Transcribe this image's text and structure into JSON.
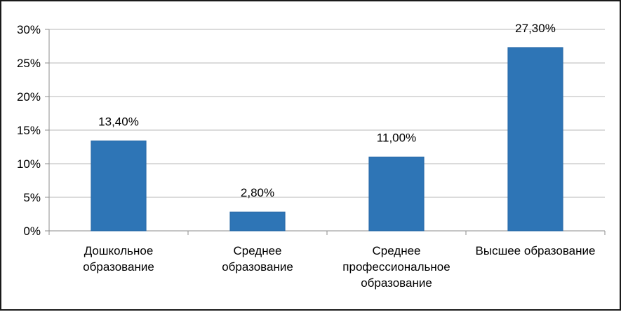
{
  "chart_data": {
    "type": "bar",
    "title": "",
    "xlabel": "",
    "ylabel": "",
    "categories": [
      [
        "Дошкольное",
        "образование"
      ],
      [
        "Среднее",
        "образование"
      ],
      [
        "Среднее",
        "профессиональное",
        "образование"
      ],
      [
        "Высшее образование"
      ]
    ],
    "values": [
      13.4,
      2.8,
      11.0,
      27.3
    ],
    "data_labels": [
      "13,40%",
      "2,80%",
      "11,00%",
      "27,30%"
    ],
    "ylim": [
      0,
      30
    ],
    "y_ticks": [
      0,
      5,
      10,
      15,
      20,
      25,
      30
    ],
    "y_tick_labels": [
      "0%",
      "5%",
      "10%",
      "15%",
      "20%",
      "25%",
      "30%"
    ],
    "gridlines": true,
    "legend": false,
    "colors": {
      "bar": "#2e75b6",
      "bar_stroke": "#2a6aa6",
      "grid": "#b7b7b7",
      "axis": "#8c8c8c",
      "frame": "#1a1a1a"
    }
  }
}
